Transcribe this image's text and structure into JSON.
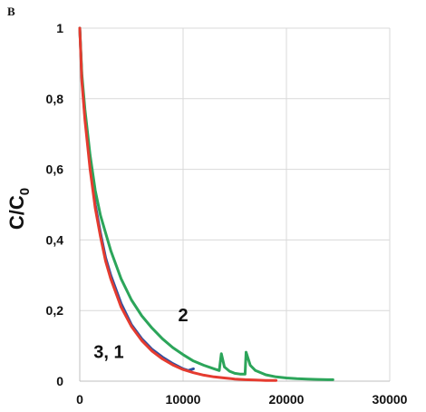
{
  "chart_data": {
    "type": "line",
    "panel_label": "B",
    "title": "",
    "xlabel": "",
    "ylabel": "C/C",
    "ylabel_subscript": "0",
    "xlim": [
      0,
      30000
    ],
    "ylim": [
      0,
      1
    ],
    "xticks": [
      0,
      10000,
      20000,
      30000
    ],
    "xtick_labels": [
      "0",
      "10000",
      "20000",
      "30000"
    ],
    "yticks": [
      0,
      0.2,
      0.4,
      0.6,
      0.8,
      1
    ],
    "ytick_labels": [
      "0",
      "0,2",
      "0,4",
      "0,6",
      "0,8",
      "1"
    ],
    "grid": true,
    "legend": "none",
    "annotations": [
      {
        "text": "2",
        "x": 10000,
        "y": 0.17
      },
      {
        "text": "3, 1",
        "x": 2800,
        "y": 0.065
      }
    ],
    "series": [
      {
        "color": "#2e4fa0",
        "x": [
          0,
          200,
          500,
          1000,
          1500,
          2000,
          2500,
          3000,
          4000,
          5000,
          6000,
          7000,
          8000,
          9000,
          10000,
          10500,
          11000
        ],
        "y": [
          1,
          0.86,
          0.75,
          0.61,
          0.5,
          0.42,
          0.35,
          0.3,
          0.22,
          0.16,
          0.12,
          0.09,
          0.068,
          0.05,
          0.035,
          0.03,
          0.035
        ]
      },
      {
        "color": "#2ca55a",
        "x": [
          0,
          200,
          500,
          1000,
          1500,
          2000,
          3000,
          4000,
          5000,
          6000,
          7000,
          8000,
          9000,
          10000,
          11000,
          12000,
          13000,
          13500,
          13700,
          14000,
          14500,
          15000,
          15500,
          16000,
          16100,
          16500,
          17000,
          18000,
          19000,
          20000,
          21000,
          22000,
          23000,
          24000,
          24500
        ],
        "y": [
          1,
          0.87,
          0.77,
          0.64,
          0.54,
          0.47,
          0.37,
          0.29,
          0.23,
          0.185,
          0.15,
          0.12,
          0.095,
          0.075,
          0.057,
          0.045,
          0.035,
          0.03,
          0.078,
          0.04,
          0.028,
          0.022,
          0.02,
          0.02,
          0.082,
          0.045,
          0.03,
          0.018,
          0.012,
          0.009,
          0.007,
          0.006,
          0.005,
          0.004,
          0.004
        ]
      },
      {
        "color": "#e53b2f",
        "x": [
          0,
          200,
          500,
          1000,
          1500,
          2000,
          2500,
          3000,
          4000,
          5000,
          6000,
          7000,
          8000,
          9000,
          10000,
          11000,
          12000,
          13000,
          14000,
          15000,
          16000,
          17000,
          18000,
          19000
        ],
        "y": [
          1,
          0.85,
          0.74,
          0.6,
          0.49,
          0.41,
          0.34,
          0.29,
          0.21,
          0.155,
          0.115,
          0.085,
          0.063,
          0.046,
          0.033,
          0.024,
          0.017,
          0.012,
          0.009,
          0.006,
          0.004,
          0.003,
          0.002,
          0.002
        ]
      }
    ]
  }
}
